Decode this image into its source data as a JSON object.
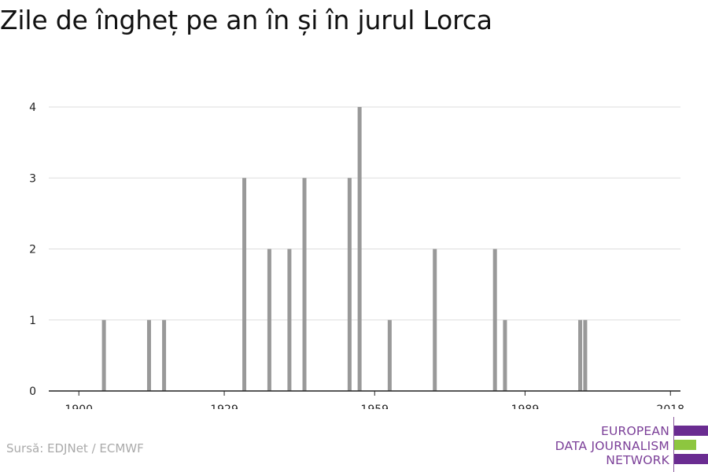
{
  "title": "Zile de îngheț pe an în și în jurul Lorca",
  "source": "Sursă: EDJNet / ECMWF",
  "logo": {
    "lines": [
      "EUROPEAN",
      "DATA JOURNALISM",
      "NETWORK"
    ],
    "colors": [
      "#6a2c91",
      "#8dc63f",
      "#6a2c91"
    ]
  },
  "chart_data": {
    "type": "bar",
    "title": "Zile de îngheț pe an în și în jurul Lorca",
    "xlabel": "",
    "ylabel": "",
    "x_ticks": [
      1900,
      1929,
      1959,
      1989,
      2018
    ],
    "y_ticks": [
      0,
      1,
      2,
      3,
      4
    ],
    "xlim": [
      1894,
      2020
    ],
    "ylim": [
      0,
      4
    ],
    "bar_color": "#999999",
    "grid": true,
    "x": [
      1905,
      1914,
      1917,
      1933,
      1938,
      1942,
      1945,
      1954,
      1956,
      1962,
      1971,
      1983,
      1985,
      2000,
      2001
    ],
    "values": [
      1,
      1,
      1,
      3,
      2,
      2,
      3,
      3,
      4,
      1,
      2,
      2,
      1,
      1,
      1
    ]
  }
}
